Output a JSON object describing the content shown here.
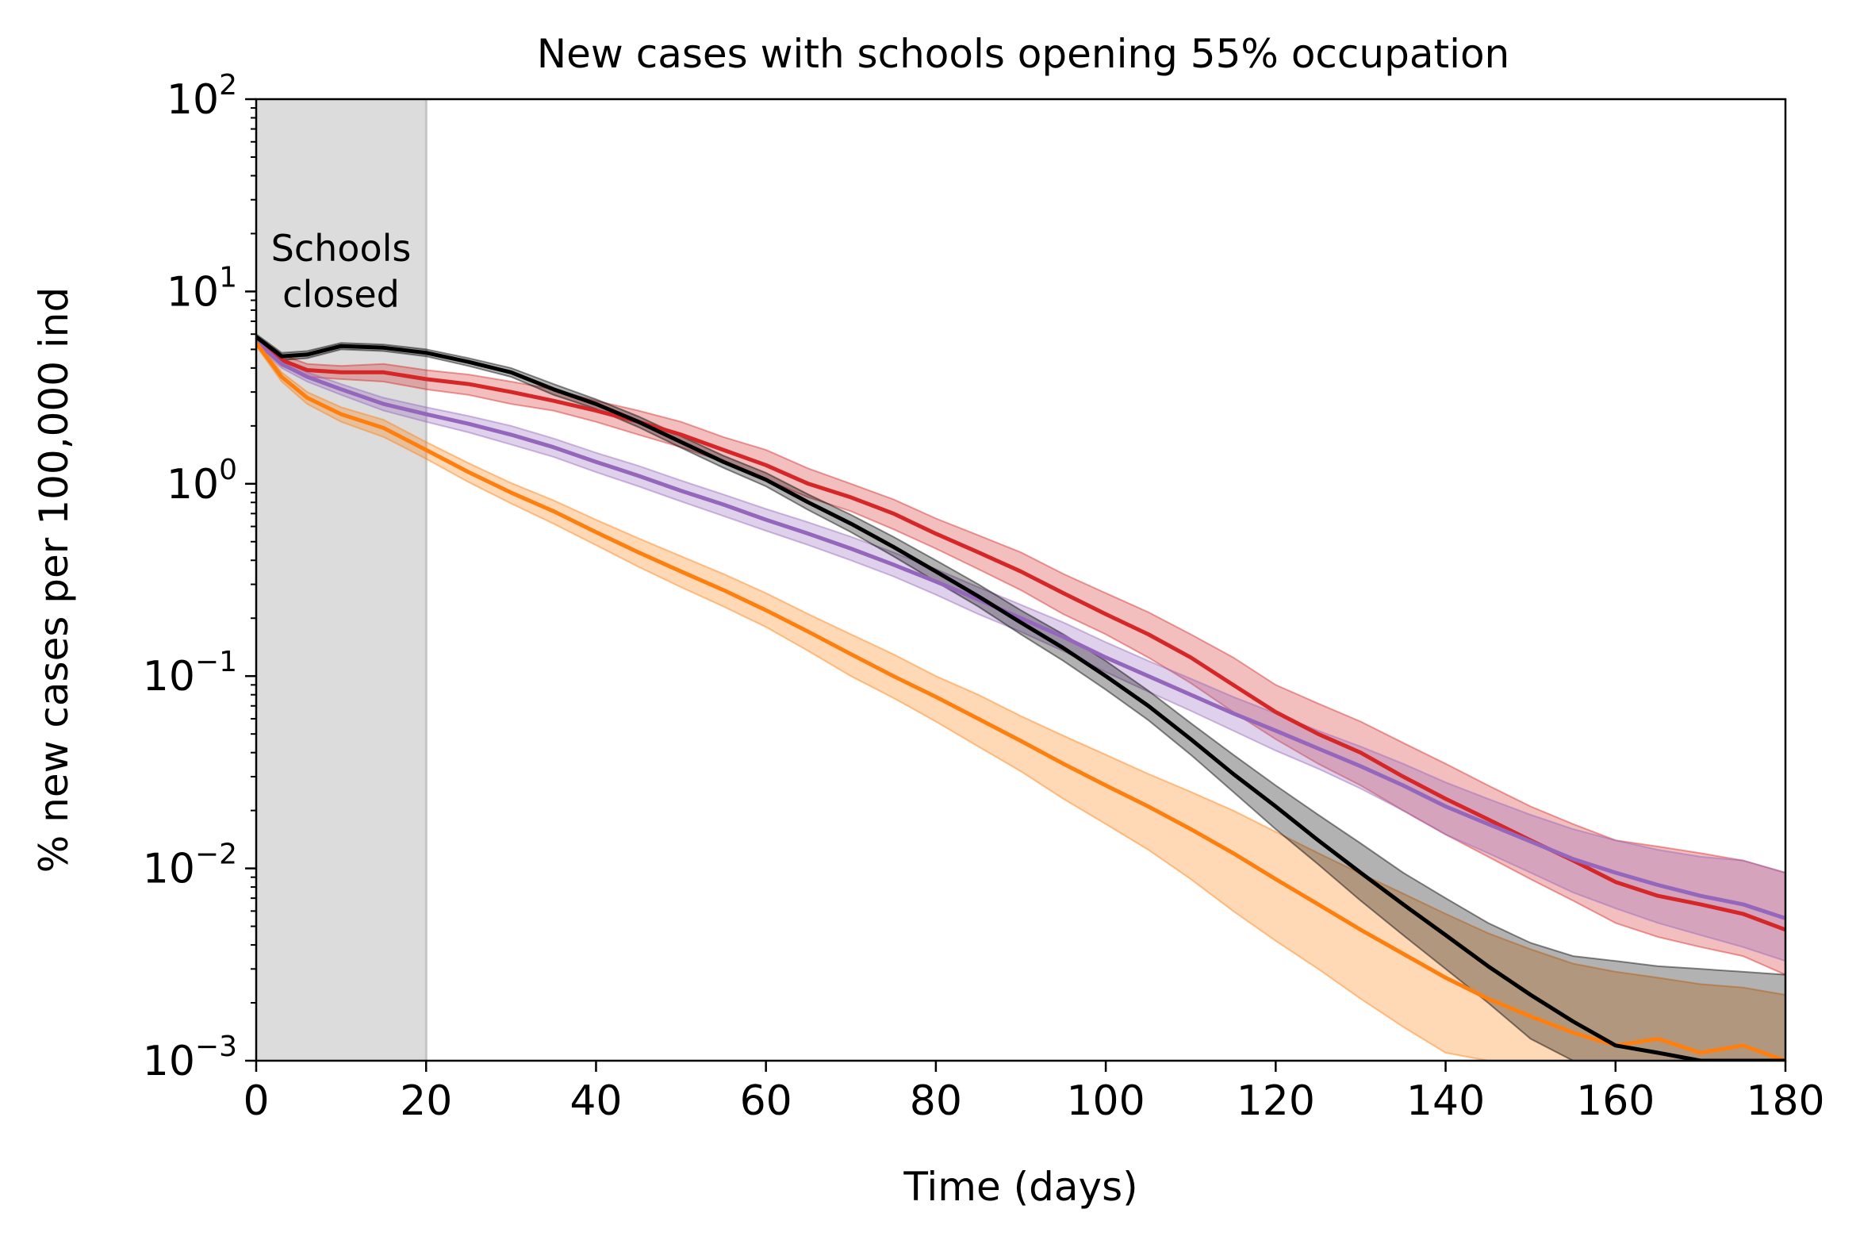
{
  "chart_data": {
    "type": "line",
    "title": "New cases with schools opening 55% occupation",
    "xlabel": "Time (days)",
    "ylabel": "% new cases per 100,000 ind",
    "xlim": [
      0,
      180
    ],
    "ylim": [
      0.001,
      100
    ],
    "yscale": "log",
    "grid": false,
    "legend": "none",
    "xticks": [
      0,
      20,
      40,
      60,
      80,
      100,
      120,
      140,
      160,
      180
    ],
    "xtick_labels": [
      "0",
      "20",
      "40",
      "60",
      "80",
      "100",
      "120",
      "140",
      "160",
      "180"
    ],
    "yticks": [
      0.001,
      0.01,
      0.1,
      1,
      10,
      100
    ],
    "ytick_base": "10",
    "ytick_exponents": [
      "−3",
      "−2",
      "−1",
      "0",
      "1",
      "2"
    ],
    "shaded_region": {
      "x": [
        0,
        20
      ],
      "color": "#dcdcdc",
      "label_line1": "Schools",
      "label_line2": "closed"
    },
    "series": [
      {
        "color": "#d62728",
        "x": [
          0,
          3,
          6,
          10,
          15,
          20,
          25,
          30,
          35,
          40,
          45,
          50,
          55,
          60,
          65,
          70,
          75,
          80,
          85,
          90,
          95,
          100,
          105,
          110,
          115,
          120,
          125,
          130,
          135,
          140,
          145,
          150,
          155,
          160,
          165,
          170,
          175,
          180
        ],
        "y": [
          5.7,
          4.4,
          3.9,
          3.8,
          3.8,
          3.5,
          3.3,
          3.0,
          2.7,
          2.4,
          2.1,
          1.8,
          1.5,
          1.25,
          1.0,
          0.85,
          0.7,
          0.55,
          0.44,
          0.35,
          0.27,
          0.21,
          0.165,
          0.125,
          0.09,
          0.065,
          0.05,
          0.04,
          0.03,
          0.023,
          0.018,
          0.014,
          0.011,
          0.0085,
          0.0072,
          0.0065,
          0.0058,
          0.0048
        ],
        "lower": [
          5.5,
          4.1,
          3.6,
          3.5,
          3.4,
          3.1,
          2.9,
          2.6,
          2.4,
          2.1,
          1.8,
          1.55,
          1.3,
          1.05,
          0.85,
          0.72,
          0.58,
          0.46,
          0.36,
          0.28,
          0.21,
          0.165,
          0.125,
          0.092,
          0.065,
          0.047,
          0.035,
          0.027,
          0.02,
          0.015,
          0.0115,
          0.0088,
          0.0068,
          0.0052,
          0.0044,
          0.0039,
          0.0035,
          0.0028
        ],
        "upper": [
          5.9,
          4.7,
          4.2,
          4.1,
          4.2,
          3.9,
          3.7,
          3.4,
          3.1,
          2.7,
          2.4,
          2.1,
          1.75,
          1.5,
          1.2,
          1.0,
          0.83,
          0.66,
          0.54,
          0.44,
          0.34,
          0.27,
          0.215,
          0.165,
          0.125,
          0.09,
          0.072,
          0.058,
          0.045,
          0.035,
          0.027,
          0.021,
          0.017,
          0.014,
          0.013,
          0.012,
          0.011,
          0.0095
        ]
      },
      {
        "color": "#9467bd",
        "x": [
          0,
          3,
          6,
          10,
          15,
          20,
          25,
          30,
          35,
          40,
          45,
          50,
          55,
          60,
          65,
          70,
          75,
          80,
          85,
          90,
          95,
          100,
          105,
          110,
          115,
          120,
          125,
          130,
          135,
          140,
          145,
          150,
          155,
          160,
          165,
          170,
          175,
          180
        ],
        "y": [
          5.5,
          4.2,
          3.6,
          3.1,
          2.6,
          2.3,
          2.05,
          1.8,
          1.55,
          1.3,
          1.1,
          0.92,
          0.78,
          0.65,
          0.55,
          0.46,
          0.38,
          0.31,
          0.25,
          0.2,
          0.16,
          0.125,
          0.1,
          0.08,
          0.064,
          0.052,
          0.042,
          0.034,
          0.027,
          0.021,
          0.017,
          0.0138,
          0.0112,
          0.0095,
          0.0082,
          0.0072,
          0.0065,
          0.0055
        ],
        "lower": [
          5.3,
          4.0,
          3.4,
          2.9,
          2.4,
          2.1,
          1.85,
          1.6,
          1.38,
          1.15,
          0.97,
          0.81,
          0.68,
          0.57,
          0.48,
          0.4,
          0.33,
          0.265,
          0.21,
          0.17,
          0.135,
          0.105,
          0.083,
          0.066,
          0.052,
          0.041,
          0.033,
          0.026,
          0.02,
          0.015,
          0.012,
          0.0095,
          0.0075,
          0.0062,
          0.0052,
          0.0045,
          0.0039,
          0.0033
        ],
        "upper": [
          5.7,
          4.4,
          3.8,
          3.3,
          2.8,
          2.5,
          2.25,
          2.0,
          1.72,
          1.45,
          1.24,
          1.04,
          0.88,
          0.74,
          0.63,
          0.53,
          0.44,
          0.36,
          0.29,
          0.235,
          0.19,
          0.15,
          0.12,
          0.097,
          0.078,
          0.064,
          0.052,
          0.043,
          0.035,
          0.028,
          0.023,
          0.019,
          0.016,
          0.014,
          0.0125,
          0.0115,
          0.011,
          0.0095
        ]
      },
      {
        "color": "#ff7f0e",
        "x": [
          0,
          3,
          6,
          10,
          15,
          20,
          25,
          30,
          35,
          40,
          45,
          50,
          55,
          60,
          65,
          70,
          75,
          80,
          85,
          90,
          95,
          100,
          105,
          110,
          115,
          120,
          125,
          130,
          135,
          140,
          145,
          150,
          155,
          160,
          165,
          170,
          175,
          180
        ],
        "y": [
          5.4,
          3.6,
          2.8,
          2.3,
          1.95,
          1.5,
          1.15,
          0.9,
          0.72,
          0.56,
          0.44,
          0.35,
          0.28,
          0.22,
          0.17,
          0.13,
          0.1,
          0.078,
          0.06,
          0.046,
          0.035,
          0.027,
          0.021,
          0.016,
          0.012,
          0.0088,
          0.0065,
          0.0048,
          0.0036,
          0.0027,
          0.0021,
          0.0017,
          0.0014,
          0.0012,
          0.0013,
          0.0011,
          0.0012,
          0.001
        ],
        "lower": [
          5.2,
          3.4,
          2.6,
          2.1,
          1.75,
          1.35,
          1.02,
          0.79,
          0.62,
          0.48,
          0.37,
          0.29,
          0.23,
          0.18,
          0.135,
          0.1,
          0.077,
          0.058,
          0.043,
          0.032,
          0.023,
          0.017,
          0.0125,
          0.0088,
          0.006,
          0.0042,
          0.003,
          0.0021,
          0.0015,
          0.0011,
          0.001,
          0.001,
          0.001,
          0.001,
          0.001,
          0.001,
          0.001,
          0.001
        ],
        "upper": [
          5.6,
          3.8,
          3.0,
          2.5,
          2.15,
          1.65,
          1.28,
          1.01,
          0.82,
          0.65,
          0.52,
          0.42,
          0.34,
          0.27,
          0.21,
          0.165,
          0.13,
          0.1,
          0.08,
          0.062,
          0.049,
          0.039,
          0.031,
          0.025,
          0.02,
          0.0155,
          0.012,
          0.0094,
          0.0074,
          0.0058,
          0.0046,
          0.0038,
          0.0032,
          0.0029,
          0.0027,
          0.0025,
          0.0024,
          0.0022
        ]
      },
      {
        "color": "#000000",
        "x": [
          0,
          3,
          6,
          10,
          15,
          20,
          25,
          30,
          35,
          40,
          45,
          50,
          55,
          60,
          65,
          70,
          75,
          80,
          85,
          90,
          95,
          100,
          105,
          110,
          115,
          120,
          125,
          130,
          135,
          140,
          145,
          150,
          155,
          160,
          165,
          170,
          175,
          180
        ],
        "y": [
          5.8,
          4.6,
          4.7,
          5.2,
          5.1,
          4.8,
          4.3,
          3.8,
          3.1,
          2.6,
          2.1,
          1.65,
          1.3,
          1.05,
          0.8,
          0.62,
          0.47,
          0.35,
          0.26,
          0.19,
          0.14,
          0.1,
          0.07,
          0.047,
          0.031,
          0.021,
          0.014,
          0.0095,
          0.0065,
          0.0045,
          0.0031,
          0.0022,
          0.0016,
          0.0012,
          0.0011,
          0.001,
          0.001,
          0.001
        ],
        "lower": [
          5.6,
          4.4,
          4.5,
          5.0,
          4.9,
          4.6,
          4.1,
          3.6,
          2.9,
          2.45,
          1.97,
          1.54,
          1.21,
          0.97,
          0.73,
          0.56,
          0.42,
          0.31,
          0.23,
          0.165,
          0.12,
          0.085,
          0.059,
          0.039,
          0.025,
          0.016,
          0.0105,
          0.0068,
          0.0045,
          0.003,
          0.002,
          0.0013,
          0.001,
          0.001,
          0.001,
          0.001,
          0.001,
          0.001
        ],
        "upper": [
          6.0,
          4.8,
          4.9,
          5.4,
          5.3,
          5.0,
          4.5,
          4.0,
          3.3,
          2.75,
          2.24,
          1.77,
          1.4,
          1.14,
          0.88,
          0.69,
          0.53,
          0.4,
          0.3,
          0.22,
          0.165,
          0.12,
          0.084,
          0.057,
          0.039,
          0.027,
          0.019,
          0.0135,
          0.0095,
          0.007,
          0.0052,
          0.0041,
          0.0035,
          0.0033,
          0.0031,
          0.003,
          0.0029,
          0.0028
        ]
      }
    ]
  }
}
